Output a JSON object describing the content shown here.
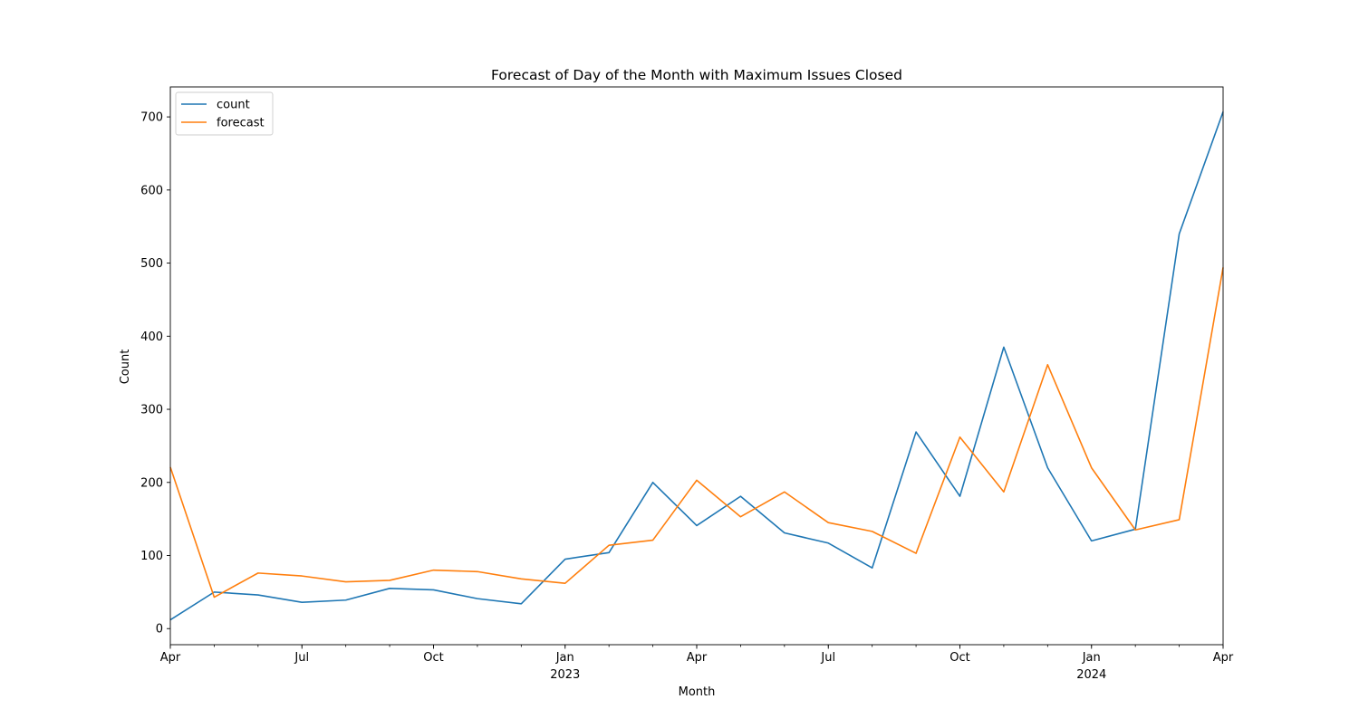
{
  "chart_data": {
    "type": "line",
    "title": "Forecast of Day of the Month with Maximum Issues Closed",
    "xlabel": "Month",
    "ylabel": "Count",
    "x": [
      "2022-04",
      "2022-05",
      "2022-06",
      "2022-07",
      "2022-08",
      "2022-09",
      "2022-10",
      "2022-11",
      "2022-12",
      "2023-01",
      "2023-02",
      "2023-03",
      "2023-04",
      "2023-05",
      "2023-06",
      "2023-07",
      "2023-08",
      "2023-09",
      "2023-10",
      "2023-11",
      "2023-12",
      "2024-01",
      "2024-02",
      "2024-03",
      "2024-04"
    ],
    "series": [
      {
        "name": "count",
        "color": "#1f77b4",
        "values": [
          12,
          50,
          46,
          36,
          39,
          55,
          53,
          41,
          34,
          95,
          104,
          200,
          141,
          181,
          131,
          117,
          83,
          269,
          181,
          385,
          220,
          120,
          136,
          540,
          707
        ]
      },
      {
        "name": "forecast",
        "color": "#ff7f0e",
        "values": [
          221,
          43,
          76,
          72,
          64,
          66,
          80,
          78,
          68,
          62,
          114,
          121,
          203,
          153,
          187,
          145,
          133,
          103,
          262,
          187,
          361,
          220,
          135,
          149,
          494
        ]
      }
    ],
    "ylim": [
      -22,
      741
    ],
    "yticks": [
      0,
      100,
      200,
      300,
      400,
      500,
      600,
      700
    ],
    "xticks_major": [
      {
        "index": 0,
        "label": "Apr",
        "sub": ""
      },
      {
        "index": 3,
        "label": "Jul",
        "sub": ""
      },
      {
        "index": 6,
        "label": "Oct",
        "sub": ""
      },
      {
        "index": 9,
        "label": "Jan",
        "sub": "2023"
      },
      {
        "index": 12,
        "label": "Apr",
        "sub": ""
      },
      {
        "index": 15,
        "label": "Jul",
        "sub": ""
      },
      {
        "index": 18,
        "label": "Oct",
        "sub": ""
      },
      {
        "index": 21,
        "label": "Jan",
        "sub": "2024"
      },
      {
        "index": 24,
        "label": "Apr",
        "sub": ""
      }
    ],
    "legend_position": "top-left",
    "grid": false
  }
}
